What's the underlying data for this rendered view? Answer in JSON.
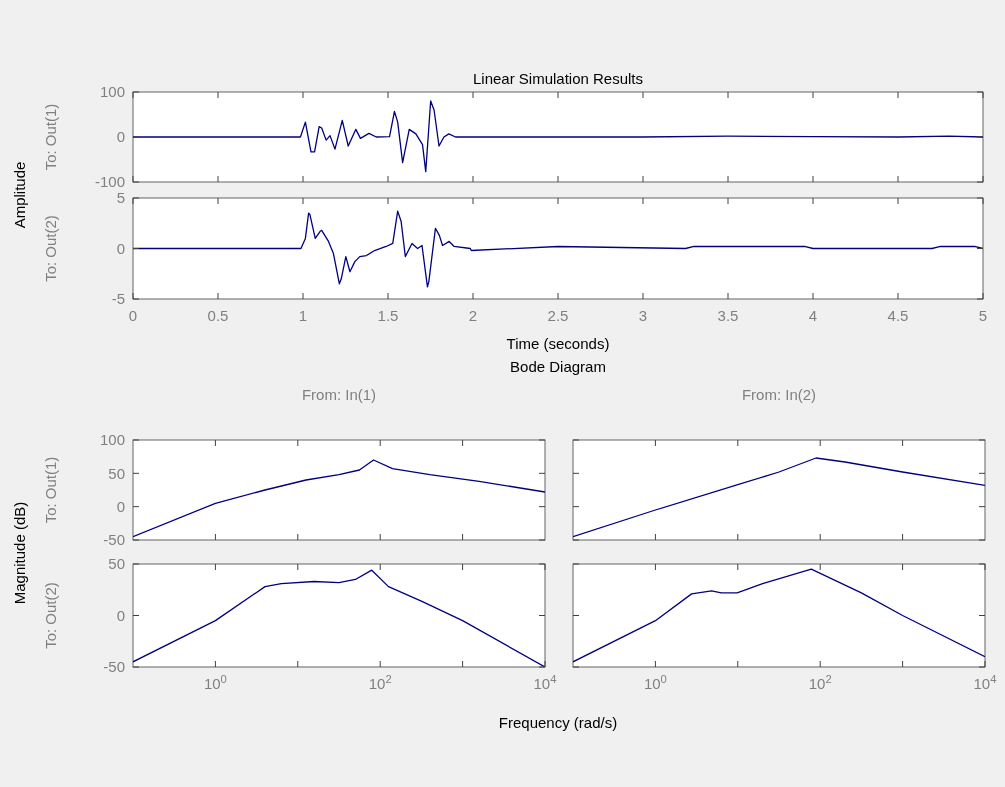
{
  "chart_data": [
    {
      "type": "line",
      "title": "Linear Simulation Results",
      "ylabel": "To: Out(1)",
      "annotations": [
        "Amplitude"
      ],
      "tick_labels": "y",
      "color": "#000080",
      "x": [
        0,
        0.985,
        1.014,
        1.047,
        1.068,
        1.095,
        1.11,
        1.136,
        1.159,
        1.188,
        1.231,
        1.266,
        1.311,
        1.338,
        1.388,
        1.431,
        1.509,
        1.538,
        1.557,
        1.586,
        1.625,
        1.664,
        1.703,
        1.722,
        1.751,
        1.771,
        1.8,
        1.829,
        1.858,
        1.897,
        1.98,
        2.5,
        3,
        3.5,
        4,
        4.5,
        4.8,
        5
      ],
      "values": [
        0,
        0,
        33,
        -33,
        -33,
        23,
        20,
        -7,
        3,
        -27,
        37,
        -20,
        17,
        -3,
        8,
        0,
        1,
        57,
        33,
        -57,
        17,
        7,
        -17,
        -77,
        80,
        60,
        -20,
        0,
        7,
        0,
        0,
        0,
        0,
        2,
        1,
        0,
        2,
        0
      ],
      "xlim": [
        0,
        5
      ],
      "ylim": [
        -100,
        100
      ],
      "xticks": [
        {
          "value": 0,
          "label": null
        },
        {
          "value": 0.5,
          "label": null
        },
        {
          "value": 1,
          "label": null
        },
        {
          "value": 1.5,
          "label": null
        },
        {
          "value": 2,
          "label": null
        },
        {
          "value": 2.5,
          "label": null
        },
        {
          "value": 3,
          "label": null
        },
        {
          "value": 3.5,
          "label": null
        },
        {
          "value": 4,
          "label": null
        },
        {
          "value": 4.5,
          "label": null
        },
        {
          "value": 5,
          "label": null
        }
      ],
      "yticks": [
        -100,
        0,
        100
      ]
    },
    {
      "type": "line",
      "ylabel": "To: Out(2)",
      "xlabel": "Time (seconds)",
      "color": "#000080",
      "x": [
        0,
        0.988,
        1.014,
        1.033,
        1.04,
        1.072,
        1.101,
        1.11,
        1.15,
        1.179,
        1.214,
        1.225,
        1.252,
        1.276,
        1.305,
        1.334,
        1.373,
        1.421,
        1.489,
        1.528,
        1.557,
        1.577,
        1.602,
        1.641,
        1.674,
        1.7,
        1.732,
        1.74,
        1.779,
        1.802,
        1.821,
        1.86,
        1.889,
        1.984,
        1.99,
        2.5,
        3.25,
        3.3,
        3.95,
        4,
        4.7,
        4.75,
        4.95,
        5
      ],
      "values": [
        0,
        0,
        1,
        3.5,
        3.4,
        1,
        1.7,
        1.8,
        0.7,
        -0.5,
        -3.5,
        -3,
        -0.8,
        -2.3,
        -1.3,
        -0.8,
        -0.7,
        -0.2,
        0.2,
        0.5,
        3.7,
        2.7,
        -0.8,
        0.5,
        0,
        0.3,
        -3.8,
        -3.3,
        2,
        1.3,
        0.3,
        0.7,
        0.2,
        0,
        -0.2,
        0.2,
        0,
        0.2,
        0.2,
        0,
        0,
        0.2,
        0.2,
        0
      ],
      "xlim": [
        0,
        5
      ],
      "ylim": [
        -5,
        5
      ],
      "xticks": [
        0,
        0.5,
        1,
        1.5,
        2,
        2.5,
        3,
        3.5,
        4,
        4.5,
        5
      ],
      "yticks": [
        -5,
        0,
        5
      ]
    },
    {
      "type": "line",
      "title": "From: In(1)",
      "ylabel": "To: Out(1)",
      "annotations": [
        "Bode Diagram",
        "Magnitude (dB)"
      ],
      "tick_labels": "y",
      "log": "x",
      "color": "#000080",
      "x": [
        0.1,
        1,
        4,
        12.6,
        31.6,
        56,
        83,
        141,
        400,
        1585,
        5012,
        10000
      ],
      "values": [
        -45,
        5,
        25,
        40,
        48,
        55,
        70,
        57,
        48,
        38,
        28,
        22
      ],
      "xlim": [
        0.1,
        10000
      ],
      "ylim": [
        -50,
        100
      ],
      "xticks": [
        {
          "value": 1,
          "label": null
        },
        {
          "value": 10,
          "label": null
        },
        {
          "value": 100,
          "label": null
        },
        {
          "value": 1000,
          "label": null
        }
      ],
      "yticks": [
        -50,
        0,
        50,
        100
      ]
    },
    {
      "type": "line",
      "title": "From: In(2)",
      "tick_labels": false,
      "log": "x",
      "color": "#000080",
      "x": [
        0.1,
        1,
        10,
        31.6,
        89,
        200,
        1000,
        10000
      ],
      "values": [
        -45,
        -5,
        33,
        52,
        73,
        67,
        52,
        32
      ],
      "xlim": [
        0.1,
        10000
      ],
      "ylim": [
        -50,
        100
      ],
      "xticks": [
        {
          "value": 1,
          "label": null
        },
        {
          "value": 10,
          "label": null
        },
        {
          "value": 100,
          "label": null
        },
        {
          "value": 1000,
          "label": null
        }
      ],
      "yticks": [
        {
          "value": -50,
          "label": null
        },
        {
          "value": 0,
          "label": null
        },
        {
          "value": 50,
          "label": null
        },
        {
          "value": 100,
          "label": null
        }
      ]
    },
    {
      "type": "line",
      "ylabel": "To: Out(2)",
      "xlabel": "Frequency  (rad/s)",
      "log": "x",
      "color": "#000080",
      "x": [
        0.1,
        1,
        4,
        6.3,
        15.8,
        31.6,
        50,
        79,
        126,
        316,
        1000,
        10000
      ],
      "values": [
        -45,
        -5,
        28,
        31,
        33,
        32,
        35,
        44,
        28,
        14,
        -5,
        -50
      ],
      "xlim": [
        0.1,
        10000
      ],
      "ylim": [
        -50,
        50
      ],
      "xticks": [
        {
          "value": 1,
          "label": "10$^{0}$"
        },
        {
          "value": 10,
          "label": null
        },
        {
          "value": 100,
          "label": "10$^{2}$"
        },
        {
          "value": 1000,
          "label": null
        },
        {
          "value": 10000,
          "label": "10$^{4}$"
        }
      ],
      "yticks": [
        -50,
        0,
        50
      ]
    },
    {
      "type": "line",
      "tick_labels": "x",
      "log": "x",
      "color": "#000080",
      "x": [
        0.1,
        1,
        2.75,
        4.8,
        6.3,
        9.8,
        20,
        78,
        316,
        1000,
        10000
      ],
      "values": [
        -45,
        -5,
        21,
        24,
        22,
        22,
        31,
        45,
        22,
        0,
        -40
      ],
      "xlim": [
        0.1,
        10000
      ],
      "ylim": [
        -50,
        50
      ],
      "xticks": [
        {
          "value": 1,
          "label": "10$^{0}$"
        },
        {
          "value": 10,
          "label": null
        },
        {
          "value": 100,
          "label": "10$^{2}$"
        },
        {
          "value": 1000,
          "label": null
        },
        {
          "value": 10000,
          "label": "10$^{4}$"
        }
      ],
      "yticks": [
        {
          "value": -50,
          "label": null
        },
        {
          "value": 0,
          "label": null
        },
        {
          "value": 50,
          "label": null
        }
      ]
    }
  ]
}
